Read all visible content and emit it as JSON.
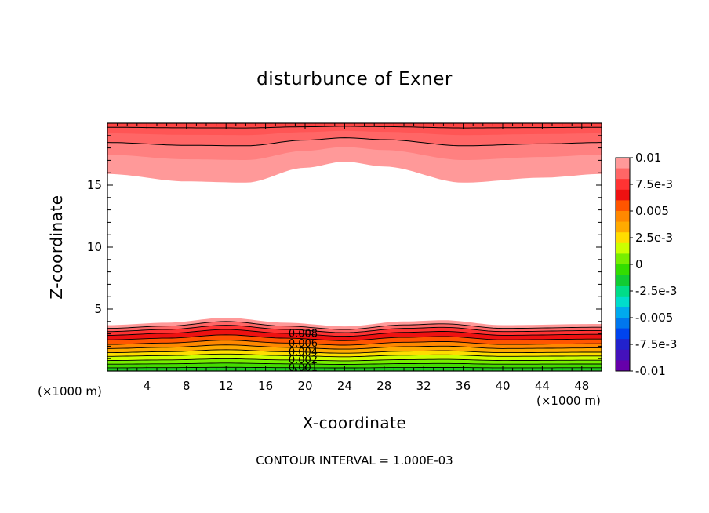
{
  "chart_data": {
    "type": "contour",
    "title": "disturbunce of Exner",
    "xlabel": "X-coordinate",
    "ylabel": "Z-coordinate",
    "x_unit_label": "(×1000 m)",
    "y_unit_label": "(×1000 m)",
    "xlim": [
      0,
      50
    ],
    "ylim": [
      0,
      20
    ],
    "x_ticks": [
      "4",
      "8",
      "12",
      "16",
      "20",
      "24",
      "28",
      "32",
      "36",
      "40",
      "44",
      "48"
    ],
    "y_ticks": [
      "5",
      "10",
      "15"
    ],
    "contour_interval_text": "CONTOUR INTERVAL = 1.000E-03",
    "contour_labels": [
      "0.008",
      "0.006",
      "0.004",
      "0.002",
      "0.001"
    ],
    "colorbar": {
      "labels": [
        "0.01",
        "7.5e-3",
        "0.005",
        "2.5e-3",
        "0",
        "-2.5e-3",
        "-0.005",
        "-7.5e-3",
        "-0.01"
      ],
      "range": [
        -0.01,
        0.01
      ],
      "colors": [
        "#ff9999",
        "#ff6666",
        "#ff3333",
        "#ee1111",
        "#ff5500",
        "#ff8800",
        "#ffaa00",
        "#ffdd00",
        "#ccff00",
        "#77ee00",
        "#33dd00",
        "#11cc33",
        "#00dd88",
        "#00ddcc",
        "#00aaee",
        "#0077ee",
        "#0044ee",
        "#2222cc",
        "#4411bb",
        "#6600aa"
      ]
    },
    "top_region": {
      "base_z_profile_x": [
        0,
        8,
        14,
        20,
        24,
        28,
        36,
        44,
        50
      ],
      "base_z_profile_z": [
        15.9,
        15.3,
        15.2,
        16.4,
        16.9,
        16.5,
        15.2,
        15.6,
        15.9
      ]
    },
    "bottom_region": {
      "top_z_profile_x": [
        0,
        6,
        12,
        18,
        24,
        30,
        34,
        40,
        50
      ],
      "top_z_profile_z": [
        3.7,
        3.9,
        4.3,
        3.9,
        3.6,
        4.0,
        4.1,
        3.7,
        3.8
      ]
    }
  }
}
